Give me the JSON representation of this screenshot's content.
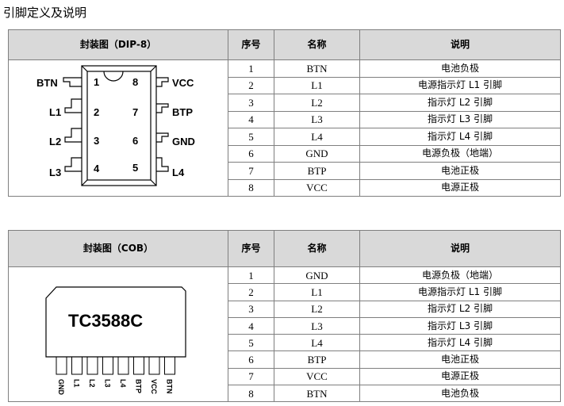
{
  "heading": "引脚定义及说明",
  "columns": {
    "seq": "序号",
    "name": "名称",
    "desc": "说明"
  },
  "dip": {
    "package_header": "封装图（DIP-8）",
    "pin_labels": {
      "p1": "BTN",
      "p2": "L1",
      "p3": "L2",
      "p4": "L3",
      "p5": "L4",
      "p6": "GND",
      "p7": "BTP",
      "p8": "VCC"
    },
    "pin_numbers": [
      "1",
      "2",
      "3",
      "4",
      "5",
      "6",
      "7",
      "8"
    ],
    "rows": [
      {
        "seq": "1",
        "name": "BTN",
        "desc": "电池负极"
      },
      {
        "seq": "2",
        "name": "L1",
        "desc": "电源指示灯 L1 引脚"
      },
      {
        "seq": "3",
        "name": "L2",
        "desc": "指示灯 L2 引脚"
      },
      {
        "seq": "4",
        "name": "L3",
        "desc": "指示灯 L3 引脚"
      },
      {
        "seq": "5",
        "name": "L4",
        "desc": "指示灯 L4 引脚"
      },
      {
        "seq": "6",
        "name": "GND",
        "desc": "电源负极（地端）"
      },
      {
        "seq": "7",
        "name": "BTP",
        "desc": "电池正极"
      },
      {
        "seq": "8",
        "name": "VCC",
        "desc": "电源正极"
      }
    ]
  },
  "cob": {
    "package_header": "封装图（COB）",
    "chip_name": "TC3588C",
    "pin_labels": [
      "GND",
      "L1",
      "L2",
      "L3",
      "L4",
      "BTP",
      "VCC",
      "BTN"
    ],
    "rows": [
      {
        "seq": "1",
        "name": "GND",
        "desc": "电源负极（地端）"
      },
      {
        "seq": "2",
        "name": "L1",
        "desc": "电源指示灯 L1 引脚"
      },
      {
        "seq": "3",
        "name": "L2",
        "desc": "指示灯 L2 引脚"
      },
      {
        "seq": "4",
        "name": "L3",
        "desc": "指示灯 L3 引脚"
      },
      {
        "seq": "5",
        "name": "L4",
        "desc": "指示灯 L4 引脚"
      },
      {
        "seq": "6",
        "name": "BTP",
        "desc": "电池正极"
      },
      {
        "seq": "7",
        "name": "VCC",
        "desc": "电源正极"
      },
      {
        "seq": "8",
        "name": "BTN",
        "desc": "电池负极"
      }
    ]
  }
}
